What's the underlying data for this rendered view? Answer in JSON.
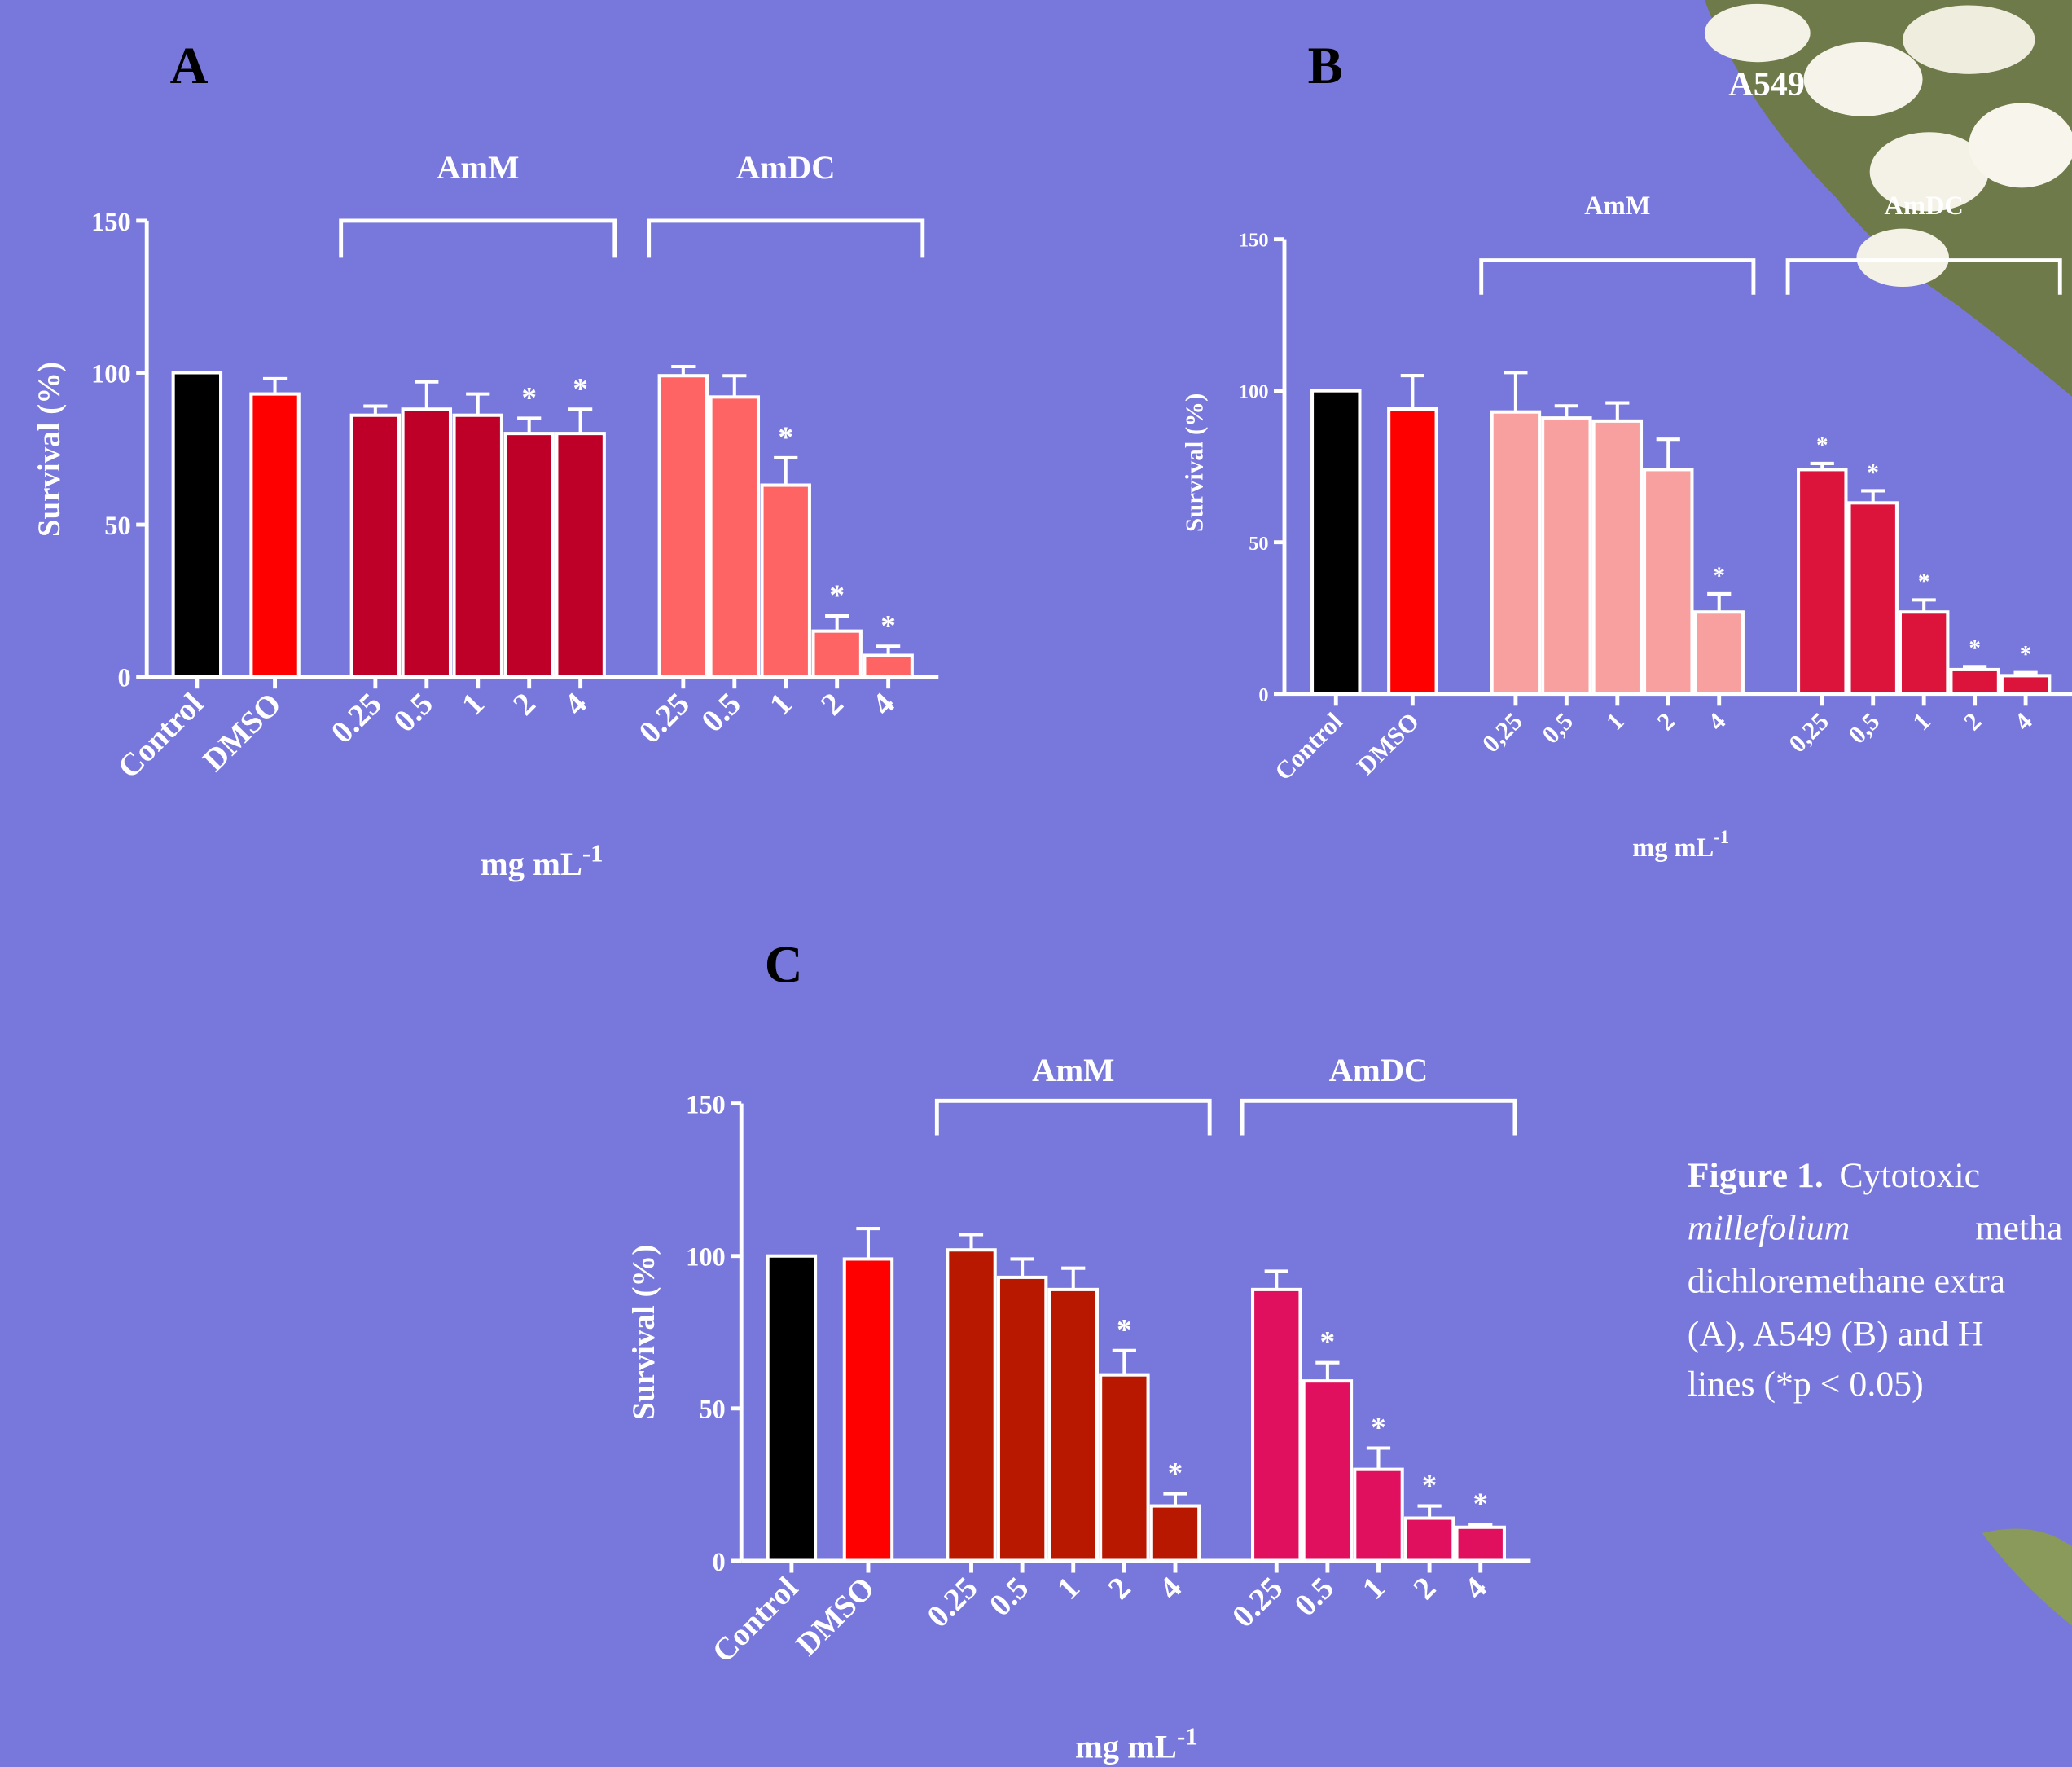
{
  "chart_data": [
    {
      "type": "bar",
      "panel": "A",
      "ylabel": "Survival (%)",
      "xlabel": "mg mL",
      "xlabel_sup": "-1",
      "ylim": [
        0,
        150
      ],
      "yticks": [
        0,
        50,
        100,
        150
      ],
      "groups": [
        {
          "label": null,
          "color": "#000000",
          "categories": [
            "Control"
          ],
          "values": [
            100
          ],
          "errors": [
            null
          ],
          "annotations": [
            null
          ]
        },
        {
          "label": null,
          "color": "#ff0000",
          "categories": [
            "DMSO"
          ],
          "values": [
            93
          ],
          "errors": [
            5
          ],
          "annotations": [
            null
          ]
        },
        {
          "label": "AmM",
          "color": "#be0028",
          "categories": [
            "0.25",
            "0.5",
            "1",
            "2",
            "4"
          ],
          "values": [
            86,
            88,
            86,
            80,
            80
          ],
          "errors": [
            3,
            9,
            7,
            5,
            8
          ],
          "annotations": [
            null,
            null,
            null,
            "*",
            "*"
          ]
        },
        {
          "label": "AmDC",
          "color": "#ff6464",
          "categories": [
            "0.25",
            "0.5",
            "1",
            "2",
            "4"
          ],
          "values": [
            99,
            92,
            63,
            15,
            7
          ],
          "errors": [
            3,
            7,
            9,
            5,
            3
          ],
          "annotations": [
            null,
            null,
            "*",
            "*",
            "*"
          ]
        }
      ]
    },
    {
      "type": "bar",
      "panel": "B",
      "title": "A549",
      "ylabel": "Survival (%)",
      "xlabel": "mg mL",
      "xlabel_sup": "-1",
      "ylim": [
        0,
        150
      ],
      "yticks": [
        0,
        50,
        100,
        150
      ],
      "groups": [
        {
          "label": null,
          "color": "#000000",
          "categories": [
            "Control"
          ],
          "values": [
            100
          ],
          "errors": [
            null
          ],
          "annotations": [
            null
          ]
        },
        {
          "label": null,
          "color": "#ff0000",
          "categories": [
            "DMSO"
          ],
          "values": [
            94
          ],
          "errors": [
            11
          ],
          "annotations": [
            null
          ]
        },
        {
          "label": "AmM",
          "color": "#f8a0a0",
          "categories": [
            "0,25",
            "0,5",
            "1",
            "2",
            "4"
          ],
          "values": [
            93,
            91,
            90,
            74,
            27
          ],
          "errors": [
            13,
            4,
            6,
            10,
            6
          ],
          "annotations": [
            null,
            null,
            null,
            null,
            "*"
          ]
        },
        {
          "label": "AmDC",
          "color": "#dc143c",
          "categories": [
            "0,25",
            "0,5",
            "1",
            "2",
            "4"
          ],
          "values": [
            74,
            63,
            27,
            8,
            6
          ],
          "errors": [
            2,
            4,
            4,
            1,
            1
          ],
          "annotations": [
            "*",
            "*",
            "*",
            "*",
            "*"
          ]
        }
      ]
    },
    {
      "type": "bar",
      "panel": "C",
      "ylabel": "Survival (%)",
      "xlabel": "mg mL",
      "xlabel_sup": "-1",
      "ylim": [
        0,
        150
      ],
      "yticks": [
        0,
        50,
        100,
        150
      ],
      "groups": [
        {
          "label": null,
          "color": "#000000",
          "categories": [
            "Control"
          ],
          "values": [
            100
          ],
          "errors": [
            null
          ],
          "annotations": [
            null
          ]
        },
        {
          "label": null,
          "color": "#ff0000",
          "categories": [
            "DMSO"
          ],
          "values": [
            99
          ],
          "errors": [
            10
          ],
          "annotations": [
            null
          ]
        },
        {
          "label": "AmM",
          "color": "#b81800",
          "categories": [
            "0.25",
            "0.5",
            "1",
            "2",
            "4"
          ],
          "values": [
            102,
            93,
            89,
            61,
            18
          ],
          "errors": [
            5,
            6,
            7,
            8,
            4
          ],
          "annotations": [
            null,
            null,
            null,
            "*",
            "*"
          ]
        },
        {
          "label": "AmDC",
          "color": "#e0105e",
          "categories": [
            "0.25",
            "0.5",
            "1",
            "2",
            "4"
          ],
          "values": [
            89,
            59,
            30,
            14,
            11
          ],
          "errors": [
            6,
            6,
            7,
            4,
            1
          ],
          "annotations": [
            null,
            "*",
            "*",
            "*",
            "*"
          ]
        }
      ]
    }
  ],
  "caption": {
    "figure": "Figure 1.",
    "line1": "Cytotoxic",
    "line2_italic": "millefolium",
    "line2": "metha",
    "line3": "dichloremethane extra",
    "line4": "(A), A549 (B) and H",
    "line5": "lines (*p < 0.05)"
  }
}
